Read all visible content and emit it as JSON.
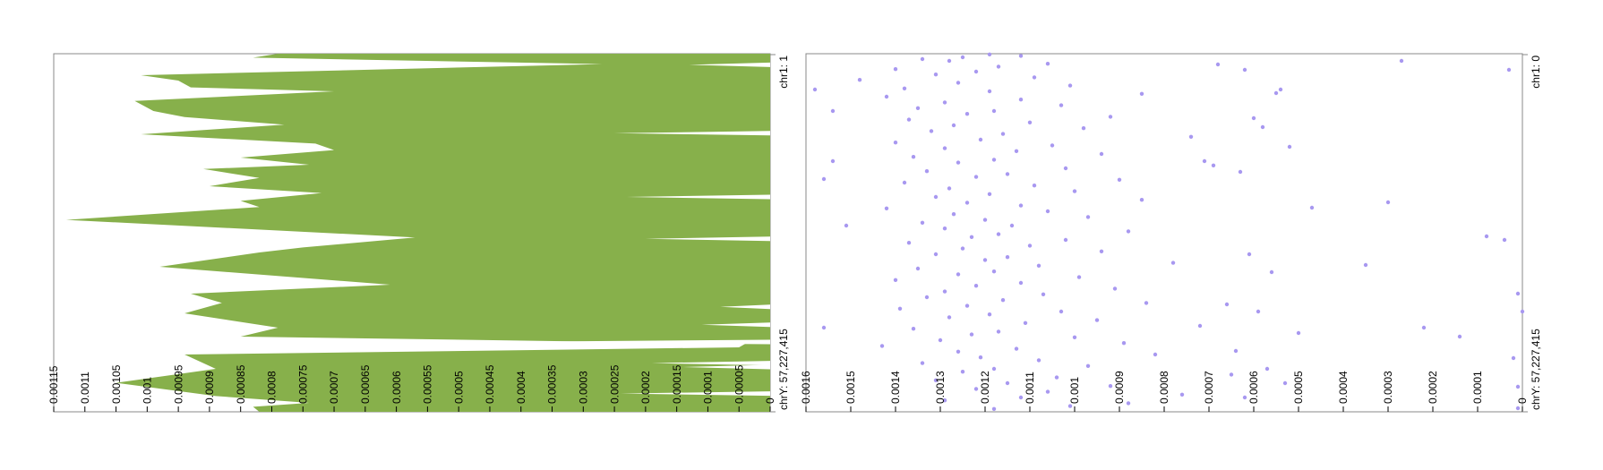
{
  "chart_data": [
    {
      "type": "area",
      "orientation": "vertical-genome",
      "color": "#87b04b",
      "x_tick_labels": [
        "0.00115",
        "0.0011",
        "0.00105",
        "0.001",
        "0.00095",
        "0.0009",
        "0.00085",
        "0.0008",
        "0.00075",
        "0.0007",
        "0.00065",
        "0.0006",
        "0.00055",
        "0.0005",
        "0.00045",
        "0.0004",
        "0.00035",
        "0.0003",
        "0.00025",
        "0.0002",
        "0.00015",
        "0.0001",
        "0.00005",
        "0"
      ],
      "xlim": [
        0,
        0.00115
      ],
      "genome_start_label": "chr1: 1",
      "genome_end_label": "chrY: 57,227,415",
      "points": [
        {
          "pos": 0.0,
          "value": 0.00079
        },
        {
          "pos": 0.011,
          "value": 0.00083
        },
        {
          "pos": 0.029,
          "value": 0.00027
        },
        {
          "pos": 0.06,
          "value": 0.00101
        },
        {
          "pos": 0.075,
          "value": 0.00095
        },
        {
          "pos": 0.094,
          "value": 0.00093
        },
        {
          "pos": 0.105,
          "value": 0.0007
        },
        {
          "pos": 0.132,
          "value": 0.00102
        },
        {
          "pos": 0.16,
          "value": 0.00099
        },
        {
          "pos": 0.177,
          "value": 0.00094
        },
        {
          "pos": 0.198,
          "value": 0.00078
        },
        {
          "pos": 0.225,
          "value": 0.00101
        },
        {
          "pos": 0.251,
          "value": 0.00073
        },
        {
          "pos": 0.269,
          "value": 0.0007
        },
        {
          "pos": 0.29,
          "value": 0.00085
        },
        {
          "pos": 0.31,
          "value": 0.00074
        },
        {
          "pos": 0.322,
          "value": 0.00091
        },
        {
          "pos": 0.347,
          "value": 0.00082
        },
        {
          "pos": 0.37,
          "value": 0.0009
        },
        {
          "pos": 0.389,
          "value": 0.00072
        },
        {
          "pos": 0.411,
          "value": 0.00085
        },
        {
          "pos": 0.428,
          "value": 0.00082
        },
        {
          "pos": 0.464,
          "value": 0.00113
        },
        {
          "pos": 0.513,
          "value": 0.00057
        },
        {
          "pos": 0.541,
          "value": 0.00075
        },
        {
          "pos": 0.555,
          "value": 0.00082
        },
        {
          "pos": 0.595,
          "value": 0.00098
        },
        {
          "pos": 0.645,
          "value": 0.00061
        },
        {
          "pos": 0.67,
          "value": 0.00093
        },
        {
          "pos": 0.696,
          "value": 0.00088
        },
        {
          "pos": 0.725,
          "value": 0.00094
        },
        {
          "pos": 0.765,
          "value": 0.00079
        },
        {
          "pos": 0.79,
          "value": 0.00085
        },
        {
          "pos": 0.81,
          "value": 4e-05
        },
        {
          "pos": 0.82,
          "value": 5e-05
        },
        {
          "pos": 0.84,
          "value": 0.00094
        },
        {
          "pos": 0.88,
          "value": 0.00089
        },
        {
          "pos": 0.919,
          "value": 0.00105
        },
        {
          "pos": 0.956,
          "value": 0.00089
        },
        {
          "pos": 0.975,
          "value": 0.00074
        },
        {
          "pos": 0.986,
          "value": 0.00083
        },
        {
          "pos": 1.0,
          "value": 0.00082
        }
      ],
      "spikes": [
        {
          "pos": 0.031,
          "value": 0.00013
        },
        {
          "pos": 0.222,
          "value": 0.00025
        },
        {
          "pos": 0.4,
          "value": 0.00023
        },
        {
          "pos": 0.517,
          "value": 0.0002
        },
        {
          "pos": 0.707,
          "value": 8e-05
        },
        {
          "pos": 0.757,
          "value": 0.00011
        },
        {
          "pos": 0.805,
          "value": 0.00045
        },
        {
          "pos": 0.864,
          "value": 0.00019
        },
        {
          "pos": 0.875,
          "value": 0.00014
        },
        {
          "pos": 0.949,
          "value": 0.00024
        }
      ]
    },
    {
      "type": "scatter",
      "orientation": "vertical-genome",
      "color": "#a898f0",
      "x_tick_labels": [
        "0.0016",
        "0.0015",
        "0.0014",
        "0.0013",
        "0.0012",
        "0.0011",
        "0.001",
        "0.0009",
        "0.0008",
        "0.0007",
        "0.0006",
        "0.0005",
        "0.0004",
        "0.0003",
        "0.0002",
        "0.0001",
        "0"
      ],
      "xlim": [
        0,
        0.0016
      ],
      "genome_start_label": "chr1: 0",
      "genome_end_label": "chrY: 57,227,415",
      "points": [
        {
          "pos": 0.002,
          "value": 0.00119
        },
        {
          "pos": 0.006,
          "value": 0.00112
        },
        {
          "pos": 0.01,
          "value": 0.00125
        },
        {
          "pos": 0.015,
          "value": 0.00134
        },
        {
          "pos": 0.02,
          "value": 0.00128
        },
        {
          "pos": 0.028,
          "value": 0.00106
        },
        {
          "pos": 0.036,
          "value": 0.00117
        },
        {
          "pos": 0.043,
          "value": 0.0014
        },
        {
          "pos": 0.05,
          "value": 0.00122
        },
        {
          "pos": 0.058,
          "value": 0.00131
        },
        {
          "pos": 0.066,
          "value": 0.00109
        },
        {
          "pos": 0.073,
          "value": 0.00148
        },
        {
          "pos": 0.081,
          "value": 0.00126
        },
        {
          "pos": 0.089,
          "value": 0.00101
        },
        {
          "pos": 0.097,
          "value": 0.00138
        },
        {
          "pos": 0.105,
          "value": 0.00119
        },
        {
          "pos": 0.112,
          "value": 0.00085
        },
        {
          "pos": 0.12,
          "value": 0.00142
        },
        {
          "pos": 0.128,
          "value": 0.00112
        },
        {
          "pos": 0.136,
          "value": 0.00129
        },
        {
          "pos": 0.144,
          "value": 0.00103
        },
        {
          "pos": 0.152,
          "value": 0.00135
        },
        {
          "pos": 0.16,
          "value": 0.00118
        },
        {
          "pos": 0.168,
          "value": 0.00124
        },
        {
          "pos": 0.176,
          "value": 0.00092
        },
        {
          "pos": 0.184,
          "value": 0.00137
        },
        {
          "pos": 0.192,
          "value": 0.0011
        },
        {
          "pos": 0.2,
          "value": 0.00127
        },
        {
          "pos": 0.208,
          "value": 0.00098
        },
        {
          "pos": 0.216,
          "value": 0.00132
        },
        {
          "pos": 0.224,
          "value": 0.00116
        },
        {
          "pos": 0.232,
          "value": 0.00074
        },
        {
          "pos": 0.24,
          "value": 0.00121
        },
        {
          "pos": 0.248,
          "value": 0.0014
        },
        {
          "pos": 0.256,
          "value": 0.00105
        },
        {
          "pos": 0.264,
          "value": 0.00129
        },
        {
          "pos": 0.272,
          "value": 0.00113
        },
        {
          "pos": 0.28,
          "value": 0.00094
        },
        {
          "pos": 0.288,
          "value": 0.00136
        },
        {
          "pos": 0.296,
          "value": 0.00118
        },
        {
          "pos": 0.304,
          "value": 0.00126
        },
        {
          "pos": 0.312,
          "value": 0.00069
        },
        {
          "pos": 0.32,
          "value": 0.00102
        },
        {
          "pos": 0.328,
          "value": 0.00133
        },
        {
          "pos": 0.336,
          "value": 0.00115
        },
        {
          "pos": 0.344,
          "value": 0.00122
        },
        {
          "pos": 0.352,
          "value": 0.0009
        },
        {
          "pos": 0.36,
          "value": 0.00138
        },
        {
          "pos": 0.368,
          "value": 0.00109
        },
        {
          "pos": 0.376,
          "value": 0.00128
        },
        {
          "pos": 0.384,
          "value": 0.001
        },
        {
          "pos": 0.392,
          "value": 0.00119
        },
        {
          "pos": 0.4,
          "value": 0.00131
        },
        {
          "pos": 0.408,
          "value": 0.00085
        },
        {
          "pos": 0.416,
          "value": 0.00124
        },
        {
          "pos": 0.424,
          "value": 0.00112
        },
        {
          "pos": 0.432,
          "value": 0.00142
        },
        {
          "pos": 0.44,
          "value": 0.00106
        },
        {
          "pos": 0.448,
          "value": 0.00127
        },
        {
          "pos": 0.456,
          "value": 0.00097
        },
        {
          "pos": 0.464,
          "value": 0.0012
        },
        {
          "pos": 0.472,
          "value": 0.00134
        },
        {
          "pos": 0.48,
          "value": 0.00114
        },
        {
          "pos": 0.488,
          "value": 0.00129
        },
        {
          "pos": 0.496,
          "value": 0.00088
        },
        {
          "pos": 0.504,
          "value": 0.00117
        },
        {
          "pos": 0.512,
          "value": 0.00123
        },
        {
          "pos": 0.52,
          "value": 0.00102
        },
        {
          "pos": 0.528,
          "value": 0.00137
        },
        {
          "pos": 0.536,
          "value": 0.0011
        },
        {
          "pos": 0.544,
          "value": 0.00125
        },
        {
          "pos": 0.552,
          "value": 0.00094
        },
        {
          "pos": 0.56,
          "value": 0.00131
        },
        {
          "pos": 0.568,
          "value": 0.00115
        },
        {
          "pos": 0.576,
          "value": 0.0012
        },
        {
          "pos": 0.584,
          "value": 0.00078
        },
        {
          "pos": 0.592,
          "value": 0.00108
        },
        {
          "pos": 0.6,
          "value": 0.00135
        },
        {
          "pos": 0.608,
          "value": 0.00118
        },
        {
          "pos": 0.616,
          "value": 0.00126
        },
        {
          "pos": 0.624,
          "value": 0.00099
        },
        {
          "pos": 0.632,
          "value": 0.0014
        },
        {
          "pos": 0.64,
          "value": 0.00112
        },
        {
          "pos": 0.648,
          "value": 0.00122
        },
        {
          "pos": 0.656,
          "value": 0.00091
        },
        {
          "pos": 0.664,
          "value": 0.00129
        },
        {
          "pos": 0.672,
          "value": 0.00107
        },
        {
          "pos": 0.68,
          "value": 0.00133
        },
        {
          "pos": 0.688,
          "value": 0.00116
        },
        {
          "pos": 0.696,
          "value": 0.00084
        },
        {
          "pos": 0.704,
          "value": 0.00124
        },
        {
          "pos": 0.712,
          "value": 0.00139
        },
        {
          "pos": 0.72,
          "value": 0.00103
        },
        {
          "pos": 0.728,
          "value": 0.00119
        },
        {
          "pos": 0.736,
          "value": 0.00128
        },
        {
          "pos": 0.744,
          "value": 0.00095
        },
        {
          "pos": 0.752,
          "value": 0.00111
        },
        {
          "pos": 0.76,
          "value": 0.00072
        },
        {
          "pos": 0.768,
          "value": 0.00136
        },
        {
          "pos": 0.776,
          "value": 0.00117
        },
        {
          "pos": 0.784,
          "value": 0.00123
        },
        {
          "pos": 0.792,
          "value": 0.001
        },
        {
          "pos": 0.8,
          "value": 0.0013
        },
        {
          "pos": 0.808,
          "value": 0.00089
        },
        {
          "pos": 0.816,
          "value": 0.00143
        },
        {
          "pos": 0.824,
          "value": 0.00113
        },
        {
          "pos": 0.832,
          "value": 0.00126
        },
        {
          "pos": 0.84,
          "value": 0.00082
        },
        {
          "pos": 0.848,
          "value": 0.00121
        },
        {
          "pos": 0.856,
          "value": 0.00108
        },
        {
          "pos": 0.864,
          "value": 0.00134
        },
        {
          "pos": 0.872,
          "value": 0.00097
        },
        {
          "pos": 0.88,
          "value": 0.00118
        },
        {
          "pos": 0.888,
          "value": 0.00125
        },
        {
          "pos": 0.896,
          "value": 0.00065
        },
        {
          "pos": 0.904,
          "value": 0.00104
        },
        {
          "pos": 0.912,
          "value": 0.00131
        },
        {
          "pos": 0.92,
          "value": 0.00115
        },
        {
          "pos": 0.928,
          "value": 0.00092
        },
        {
          "pos": 0.936,
          "value": 0.00122
        },
        {
          "pos": 0.944,
          "value": 0.00106
        },
        {
          "pos": 0.952,
          "value": 0.00076
        },
        {
          "pos": 0.96,
          "value": 0.00112
        },
        {
          "pos": 0.968,
          "value": 0.00129
        },
        {
          "pos": 0.976,
          "value": 0.00088
        },
        {
          "pos": 0.984,
          "value": 0.00101
        },
        {
          "pos": 0.992,
          "value": 0.00118
        },
        {
          "pos": 0.03,
          "value": 0.00068
        },
        {
          "pos": 0.045,
          "value": 0.00062
        },
        {
          "pos": 0.11,
          "value": 0.00055
        },
        {
          "pos": 0.18,
          "value": 0.0006
        },
        {
          "pos": 0.205,
          "value": 0.00058
        },
        {
          "pos": 0.26,
          "value": 0.00052
        },
        {
          "pos": 0.3,
          "value": 0.00071
        },
        {
          "pos": 0.33,
          "value": 0.00063
        },
        {
          "pos": 0.43,
          "value": 0.00047
        },
        {
          "pos": 0.56,
          "value": 0.00061
        },
        {
          "pos": 0.61,
          "value": 0.00056
        },
        {
          "pos": 0.7,
          "value": 0.00066
        },
        {
          "pos": 0.72,
          "value": 0.00059
        },
        {
          "pos": 0.78,
          "value": 0.0005
        },
        {
          "pos": 0.83,
          "value": 0.00064
        },
        {
          "pos": 0.88,
          "value": 0.00057
        },
        {
          "pos": 0.92,
          "value": 0.00053
        },
        {
          "pos": 0.96,
          "value": 0.00062
        },
        {
          "pos": 0.1,
          "value": 0.00054
        },
        {
          "pos": 0.02,
          "value": 0.00027
        },
        {
          "pos": 0.415,
          "value": 0.0003
        },
        {
          "pos": 0.59,
          "value": 0.00035
        },
        {
          "pos": 0.765,
          "value": 0.00022
        },
        {
          "pos": 0.79,
          "value": 0.00014
        },
        {
          "pos": 0.51,
          "value": 8e-05
        },
        {
          "pos": 0.52,
          "value": 4e-05
        },
        {
          "pos": 0.48,
          "value": 0.00151
        },
        {
          "pos": 0.1,
          "value": 0.00158
        },
        {
          "pos": 0.765,
          "value": 0.00156
        },
        {
          "pos": 0.16,
          "value": 0.00154
        },
        {
          "pos": 0.3,
          "value": 0.00154
        },
        {
          "pos": 0.35,
          "value": 0.00156
        },
        {
          "pos": 0.045,
          "value": 3e-05
        },
        {
          "pos": 0.67,
          "value": 1e-05
        },
        {
          "pos": 0.72,
          "value": 0.0
        },
        {
          "pos": 0.85,
          "value": 2e-05
        },
        {
          "pos": 0.93,
          "value": 1e-05
        },
        {
          "pos": 0.99,
          "value": 1e-05
        }
      ]
    }
  ]
}
